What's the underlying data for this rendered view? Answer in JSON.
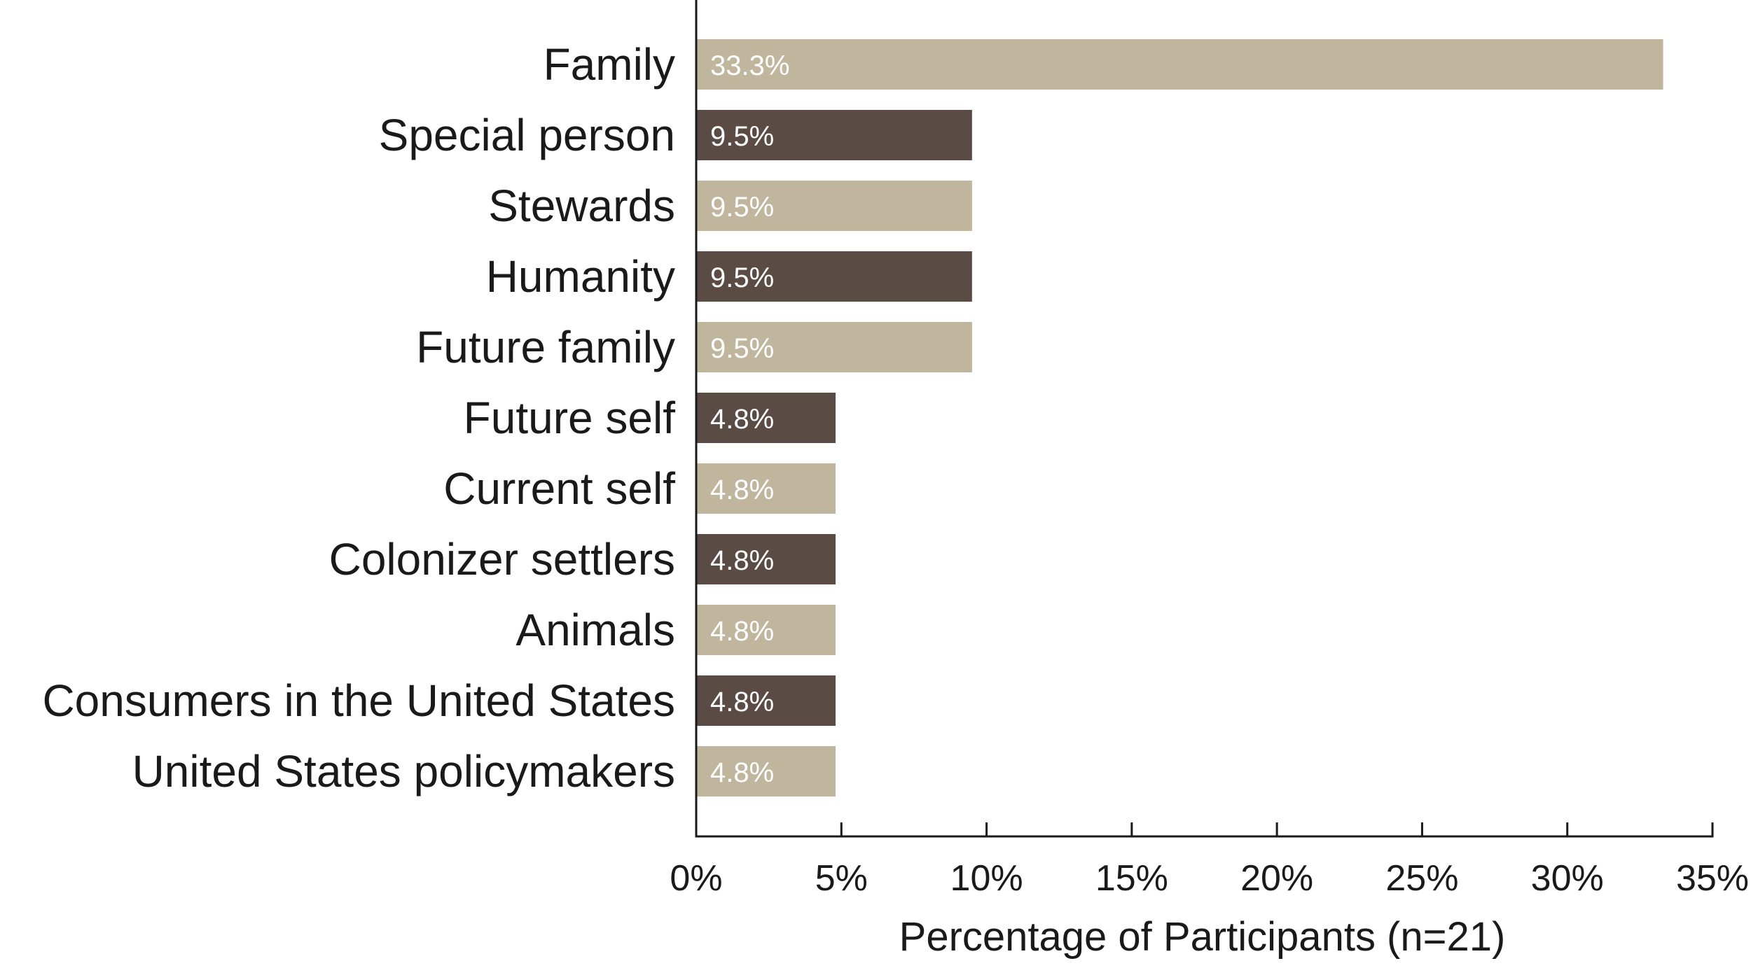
{
  "chart_data": {
    "type": "bar",
    "orientation": "horizontal",
    "categories": [
      "Family",
      "Special person",
      "Stewards",
      "Humanity",
      "Future family",
      "Future self",
      "Current self",
      "Colonizer settlers",
      "Animals",
      "Consumers in the United States",
      "United States policymakers"
    ],
    "values": [
      33.3,
      9.5,
      9.5,
      9.5,
      9.5,
      4.8,
      4.8,
      4.8,
      4.8,
      4.8,
      4.8
    ],
    "data_labels": [
      "33.3%",
      "9.5%",
      "9.5%",
      "9.5%",
      "9.5%",
      "4.8%",
      "4.8%",
      "4.8%",
      "4.8%",
      "4.8%",
      "4.8%"
    ],
    "xlabel": "Percentage of Participants (n=21)",
    "ylabel": "",
    "title": "",
    "xlim": [
      0,
      35
    ],
    "x_ticks": [
      0,
      5,
      10,
      15,
      20,
      25,
      30,
      35
    ],
    "x_tick_labels": [
      "0%",
      "5%",
      "10%",
      "15%",
      "20%",
      "25%",
      "30%",
      "35%"
    ],
    "grid": false,
    "legend": "none",
    "bar_colors": [
      "#c0b59d",
      "#5a4c44",
      "#c0b59d",
      "#5a4c44",
      "#c0b59d",
      "#5a4c44",
      "#c0b59d",
      "#5a4c44",
      "#c0b59d",
      "#5a4c44",
      "#c0b59d"
    ]
  }
}
